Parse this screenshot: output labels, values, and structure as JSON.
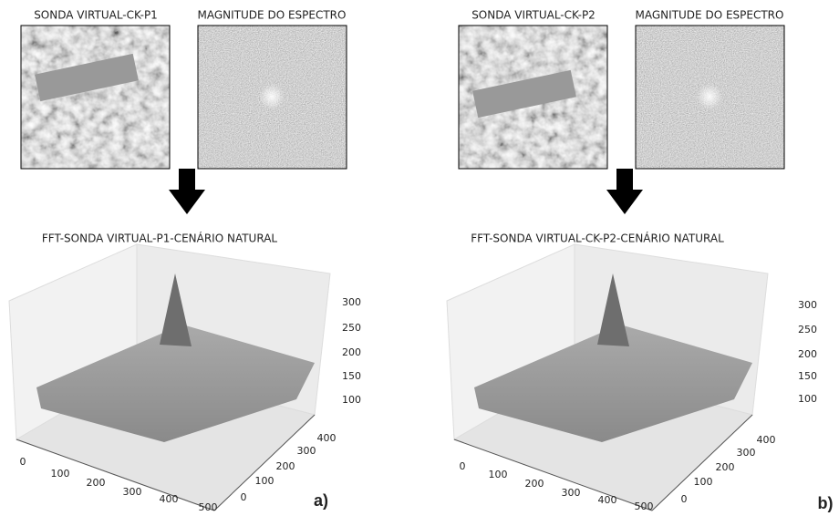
{
  "panels": [
    {
      "label": "a)",
      "probe_title": "SONDA VIRTUAL-CK-P1",
      "spectrum_title": "MAGNITUDE DO ESPECTRO",
      "plot_title": "FFT-SONDA VIRTUAL-P1-CENÁRIO NATURAL",
      "x_ticks": [
        0,
        100,
        200,
        300,
        400,
        500
      ],
      "y_ticks": [
        0,
        100,
        200,
        300,
        400
      ],
      "z_ticks": [
        300,
        250,
        200,
        150,
        100
      ]
    },
    {
      "label": "b)",
      "probe_title": "SONDA VIRTUAL-CK-P2",
      "spectrum_title": "MAGNITUDE DO ESPECTRO",
      "plot_title": "FFT-SONDA VIRTUAL-CK-P2-CENÁRIO NATURAL",
      "x_ticks": [
        0,
        100,
        200,
        300,
        400,
        500
      ],
      "y_ticks": [
        0,
        100,
        200,
        300,
        400
      ],
      "z_ticks": [
        300,
        250,
        200,
        150,
        100
      ]
    }
  ]
}
